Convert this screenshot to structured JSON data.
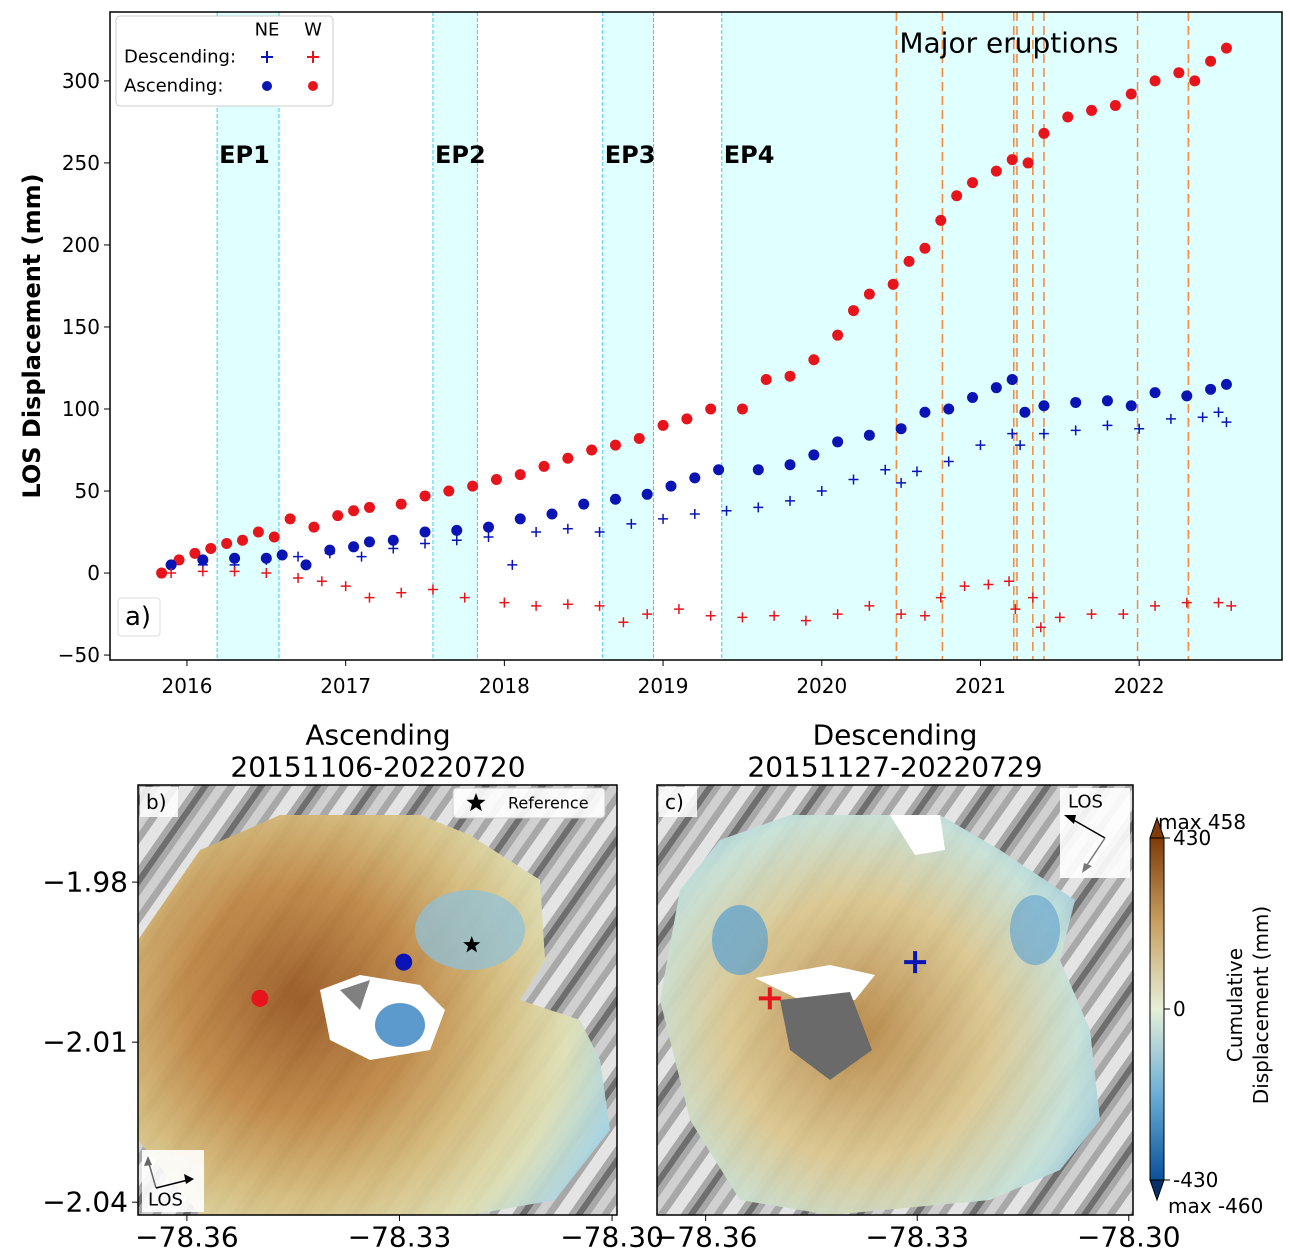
{
  "chart_data": [
    {
      "type": "scatter",
      "label": "a)",
      "y_label": "LOS Displacement (mm)",
      "xlim": [
        2015.515,
        2022.9
      ],
      "ylim": [
        -53,
        342
      ],
      "xticks": [
        2016,
        2017,
        2018,
        2019,
        2020,
        2021,
        2022
      ],
      "yticks": [
        {
          "value": -50,
          "label": "−50"
        },
        0,
        50,
        100,
        150,
        200,
        250,
        300
      ],
      "legend": {
        "corner": "upper left",
        "columns": [
          "NE",
          "W"
        ],
        "rows": [
          "Descending:",
          "Ascending:"
        ]
      },
      "episodes": [
        {
          "label": "EP1",
          "start": 2016.19,
          "end": 2016.58
        },
        {
          "label": "EP2",
          "start": 2017.55,
          "end": 2017.83
        },
        {
          "label": "EP3",
          "start": 2018.62,
          "end": 2018.94
        },
        {
          "label": "EP4",
          "start": 2019.37,
          "end": 2022.9
        }
      ],
      "episode_color": "#e0ffff",
      "episode_edge_color": "#40c8f0",
      "episode_label_color": "#e8141c",
      "eruptions": {
        "label": "Major eruptions",
        "color": "#f5883a",
        "dates": [
          2020.47,
          2020.76,
          2021.21,
          2021.23,
          2021.33,
          2021.4,
          2021.99,
          2022.31
        ]
      },
      "series": [
        {
          "orbit": "Ascending:",
          "site": "W",
          "marker": "circle",
          "color": "#e8141c",
          "x": [
            2015.84,
            2015.95,
            2016.05,
            2016.15,
            2016.25,
            2016.35,
            2016.45,
            2016.55,
            2016.65,
            2016.8,
            2016.95,
            2017.05,
            2017.15,
            2017.35,
            2017.5,
            2017.65,
            2017.8,
            2017.95,
            2018.1,
            2018.25,
            2018.4,
            2018.55,
            2018.7,
            2018.85,
            2019.0,
            2019.15,
            2019.3,
            2019.5,
            2019.65,
            2019.8,
            2019.95,
            2020.1,
            2020.2,
            2020.3,
            2020.45,
            2020.55,
            2020.65,
            2020.75,
            2020.85,
            2020.95,
            2021.1,
            2021.2,
            2021.3,
            2021.4,
            2021.55,
            2021.7,
            2021.85,
            2021.95,
            2022.1,
            2022.25,
            2022.35,
            2022.45,
            2022.55
          ],
          "values": [
            0,
            8,
            12,
            15,
            18,
            20,
            25,
            22,
            33,
            28,
            35,
            38,
            40,
            42,
            47,
            50,
            53,
            57,
            60,
            65,
            70,
            75,
            78,
            82,
            90,
            94,
            100,
            100,
            118,
            120,
            130,
            145,
            160,
            170,
            176,
            190,
            198,
            215,
            230,
            238,
            245,
            252,
            250,
            268,
            278,
            282,
            285,
            292,
            300,
            305,
            300,
            312,
            320
          ]
        },
        {
          "orbit": "Ascending:",
          "site": "NE",
          "marker": "circle",
          "color": "#0a14b4",
          "x": [
            2015.9,
            2016.1,
            2016.3,
            2016.5,
            2016.6,
            2016.75,
            2016.9,
            2017.05,
            2017.15,
            2017.3,
            2017.5,
            2017.7,
            2017.9,
            2018.1,
            2018.3,
            2018.5,
            2018.7,
            2018.9,
            2019.05,
            2019.2,
            2019.35,
            2019.6,
            2019.8,
            2019.95,
            2020.1,
            2020.3,
            2020.5,
            2020.65,
            2020.8,
            2020.95,
            2021.1,
            2021.2,
            2021.28,
            2021.4,
            2021.6,
            2021.8,
            2021.95,
            2022.1,
            2022.3,
            2022.45,
            2022.55
          ],
          "values": [
            5,
            8,
            9,
            9,
            11,
            5,
            14,
            16,
            19,
            20,
            25,
            26,
            28,
            33,
            36,
            42,
            45,
            48,
            53,
            58,
            63,
            63,
            66,
            72,
            80,
            84,
            88,
            98,
            100,
            107,
            113,
            118,
            98,
            102,
            104,
            105,
            102,
            110,
            108,
            112,
            115
          ]
        },
        {
          "orbit": "Descending:",
          "site": "NE",
          "marker": "plus",
          "color": "#0a14b4",
          "x": [
            2015.9,
            2016.1,
            2016.3,
            2016.5,
            2016.7,
            2016.9,
            2017.1,
            2017.3,
            2017.5,
            2017.7,
            2017.9,
            2018.05,
            2018.2,
            2018.4,
            2018.6,
            2018.8,
            2019.0,
            2019.2,
            2019.4,
            2019.6,
            2019.8,
            2020.0,
            2020.2,
            2020.4,
            2020.5,
            2020.6,
            2020.8,
            2021.0,
            2021.2,
            2021.25,
            2021.4,
            2021.6,
            2021.8,
            2022.0,
            2022.2,
            2022.4,
            2022.5,
            2022.55
          ],
          "values": [
            5,
            5,
            5,
            8,
            10,
            12,
            10,
            15,
            18,
            20,
            22,
            5,
            25,
            27,
            25,
            30,
            33,
            36,
            38,
            40,
            44,
            50,
            57,
            63,
            55,
            62,
            68,
            78,
            85,
            78,
            85,
            87,
            90,
            88,
            94,
            95,
            98,
            92
          ]
        },
        {
          "orbit": "Descending:",
          "site": "W",
          "marker": "plus",
          "color": "#e8141c",
          "x": [
            2015.9,
            2016.1,
            2016.3,
            2016.5,
            2016.7,
            2016.85,
            2017.0,
            2017.15,
            2017.35,
            2017.55,
            2017.75,
            2018.0,
            2018.2,
            2018.4,
            2018.6,
            2018.75,
            2018.9,
            2019.1,
            2019.3,
            2019.5,
            2019.7,
            2019.9,
            2020.1,
            2020.3,
            2020.5,
            2020.65,
            2020.75,
            2020.9,
            2021.05,
            2021.18,
            2021.22,
            2021.33,
            2021.38,
            2021.5,
            2021.7,
            2021.9,
            2022.1,
            2022.3,
            2022.5,
            2022.58
          ],
          "values": [
            0,
            1,
            1,
            0,
            -3,
            -5,
            -8,
            -15,
            -12,
            -10,
            -15,
            -18,
            -20,
            -19,
            -20,
            -30,
            -25,
            -22,
            -26,
            -27,
            -26,
            -29,
            -25,
            -20,
            -25,
            -26,
            -15,
            -8,
            -7,
            -5,
            -22,
            -15,
            -33,
            -27,
            -25,
            -25,
            -20,
            -18,
            -18,
            -20
          ]
        }
      ]
    },
    {
      "type": "map",
      "label": "b)",
      "title": [
        "Ascending",
        "20151106-20220720"
      ],
      "xlim": [
        -78.3669,
        -78.2993
      ],
      "ylim": [
        -2.0424,
        -1.9618
      ],
      "xticks": [
        {
          "value": -78.36,
          "label": "−78.36"
        },
        {
          "value": -78.33,
          "label": "−78.33"
        },
        {
          "value": -78.3,
          "label": "−78.30"
        }
      ],
      "yticks": [
        {
          "value": -1.98,
          "label": "−1.98"
        },
        {
          "value": -2.01,
          "label": "−2.01"
        },
        {
          "value": -2.04,
          "label": "−2.04"
        }
      ],
      "points": [
        {
          "x": -78.3497,
          "y": -2.0018,
          "color": "#e8141c",
          "marker": "circle"
        },
        {
          "x": -78.3294,
          "y": -1.995,
          "color": "#0a14b4",
          "marker": "circle"
        }
      ],
      "reference": {
        "label": "Reference",
        "x": -78.3198,
        "y": -1.9918,
        "color": "#000000",
        "marker": "star"
      },
      "los_label": "LOS"
    },
    {
      "type": "map",
      "label": "c)",
      "title": [
        "Descending",
        "20151127-20220729"
      ],
      "xlim": [
        -78.3669,
        -78.2994
      ],
      "ylim": [
        -2.0424,
        -1.9618
      ],
      "xticks": [
        {
          "value": -78.36,
          "label": "−78.36"
        },
        {
          "value": -78.33,
          "label": "−78.33"
        },
        {
          "value": -78.3,
          "label": "−78.30"
        }
      ],
      "points": [
        {
          "x": -78.3509,
          "y": -2.0018,
          "color": "#e8141c",
          "marker": "plus"
        },
        {
          "x": -78.3303,
          "y": -1.995,
          "color": "#0a14b4",
          "marker": "plus"
        }
      ],
      "los_label": "LOS",
      "colorbar": {
        "label": [
          "Cumulative",
          "Displacement (mm)"
        ],
        "lim": [
          -430,
          430
        ],
        "ticks": [
          430,
          0,
          -430
        ],
        "max_label": "max 458",
        "min_label": "max -460"
      }
    }
  ]
}
